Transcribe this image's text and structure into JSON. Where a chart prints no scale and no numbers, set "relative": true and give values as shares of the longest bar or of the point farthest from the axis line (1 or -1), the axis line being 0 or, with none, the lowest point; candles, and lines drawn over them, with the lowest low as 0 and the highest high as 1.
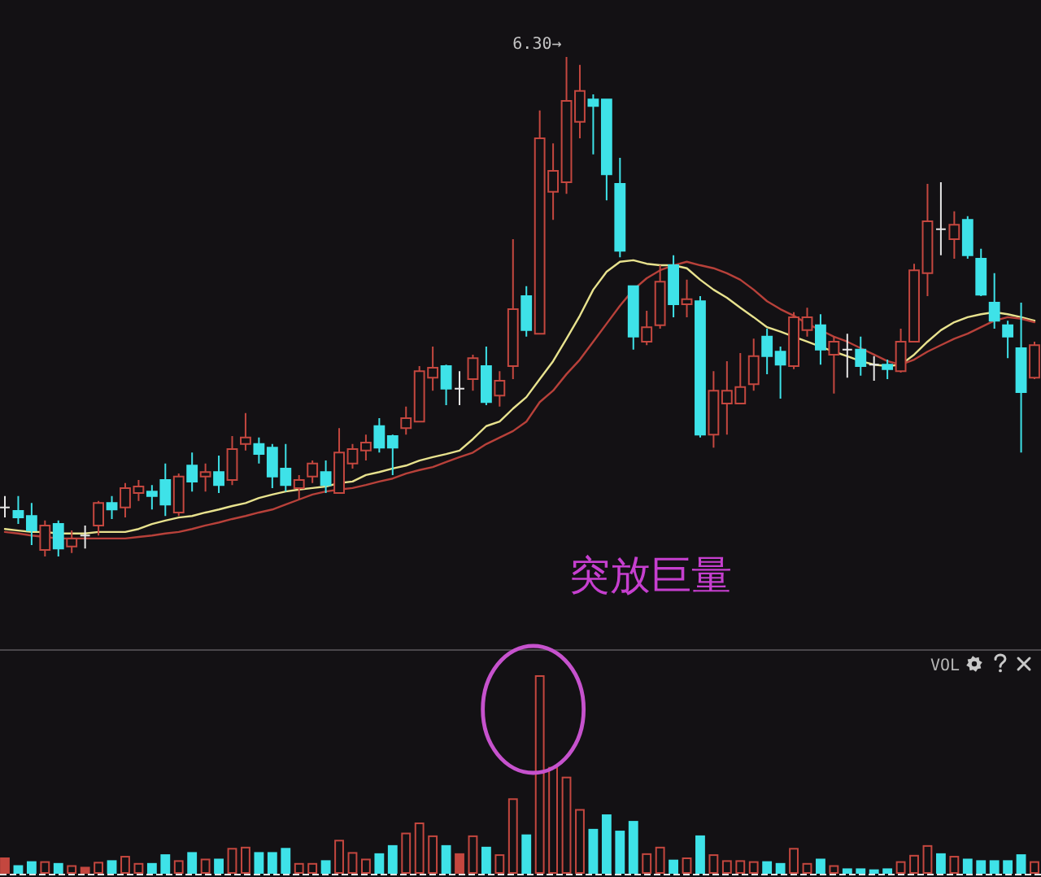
{
  "chart_data": [
    {
      "type": "candlestick",
      "relative": true,
      "categories": [
        null,
        null,
        null,
        null,
        null,
        null,
        null,
        null,
        null,
        null,
        null,
        null,
        null,
        null,
        null,
        null,
        null,
        null,
        null,
        null,
        null,
        null,
        null,
        null,
        null,
        null,
        null,
        null,
        null,
        null,
        null,
        null,
        null,
        null,
        null,
        null,
        null,
        null,
        null,
        null,
        null,
        null,
        null,
        null,
        null,
        null,
        null,
        null,
        null,
        null,
        null,
        null,
        null,
        null,
        null,
        null,
        null,
        null,
        null,
        null,
        null,
        null,
        null,
        null,
        null,
        null,
        null,
        null,
        null,
        null,
        null,
        null,
        null,
        null,
        null,
        null,
        null,
        null
      ],
      "ohlc": [
        [
          0.098,
          0.121,
          0.078,
          0.098
        ],
        [
          0.091,
          0.121,
          0.065,
          0.078
        ],
        [
          0.081,
          0.107,
          0.023,
          0.052
        ],
        [
          0.013,
          0.072,
          0,
          0.062
        ],
        [
          0.065,
          0.072,
          0,
          0.016
        ],
        [
          0.02,
          0.052,
          0.007,
          0.036
        ],
        [
          0.042,
          0.062,
          0.016,
          0.042
        ],
        [
          0.062,
          0.111,
          0.042,
          0.107
        ],
        [
          0.107,
          0.121,
          0.075,
          0.094
        ],
        [
          0.098,
          0.147,
          0.078,
          0.137
        ],
        [
          0.127,
          0.153,
          0.111,
          0.14
        ],
        [
          0.13,
          0.143,
          0.094,
          0.121
        ],
        [
          0.153,
          0.186,
          0.081,
          0.104
        ],
        [
          0.088,
          0.166,
          0.081,
          0.16
        ],
        [
          0.182,
          0.208,
          0.13,
          0.15
        ],
        [
          0.16,
          0.186,
          0.13,
          0.169
        ],
        [
          0.169,
          0.202,
          0.127,
          0.143
        ],
        [
          0.153,
          0.241,
          0.143,
          0.215
        ],
        [
          0.225,
          0.287,
          0.212,
          0.238
        ],
        [
          0.225,
          0.238,
          0.186,
          0.205
        ],
        [
          0.218,
          0.225,
          0.137,
          0.16
        ],
        [
          0.176,
          0.225,
          0.13,
          0.143
        ],
        [
          0.137,
          0.163,
          0.114,
          0.153
        ],
        [
          0.16,
          0.192,
          0.147,
          0.186
        ],
        [
          0.169,
          0.192,
          0.127,
          0.143
        ],
        [
          0.127,
          0.257,
          0.127,
          0.208
        ],
        [
          0.186,
          0.225,
          0.176,
          0.215
        ],
        [
          0.212,
          0.244,
          0.192,
          0.228
        ],
        [
          0.261,
          0.277,
          0.208,
          0.218
        ],
        [
          0.241,
          0.244,
          0.163,
          0.218
        ],
        [
          0.257,
          0.3,
          0.244,
          0.277
        ],
        [
          0.27,
          0.381,
          0.27,
          0.371
        ],
        [
          0.358,
          0.42,
          0.332,
          0.378
        ],
        [
          0.381,
          0.384,
          0.303,
          0.336
        ],
        [
          0.336,
          0.371,
          0.303,
          0.336
        ],
        [
          0.355,
          0.404,
          0.332,
          0.397
        ],
        [
          0.381,
          0.42,
          0.303,
          0.309
        ],
        [
          0.322,
          0.371,
          0.3,
          0.352
        ],
        [
          0.381,
          0.635,
          0.355,
          0.495
        ],
        [
          0.521,
          0.541,
          0.44,
          0.453
        ],
        [
          0.446,
          0.893,
          0.446,
          0.837
        ],
        [
          0.73,
          0.827,
          0.674,
          0.772
        ],
        [
          0.749,
          1,
          0.726,
          0.912
        ],
        [
          0.87,
          0.984,
          0.837,
          0.932
        ],
        [
          0.915,
          0.925,
          0.805,
          0.902
        ],
        [
          0.915,
          0.915,
          0.713,
          0.765
        ],
        [
          0.746,
          0.798,
          0.599,
          0.612
        ],
        [
          0.541,
          0.541,
          0.414,
          0.44
        ],
        [
          0.43,
          0.492,
          0.423,
          0.459
        ],
        [
          0.463,
          0.583,
          0.456,
          0.55
        ],
        [
          0.583,
          0.603,
          0.479,
          0.505
        ],
        [
          0.505,
          0.554,
          0.479,
          0.515
        ],
        [
          0.511,
          0.521,
          0.238,
          0.244
        ],
        [
          0.244,
          0.371,
          0.218,
          0.332
        ],
        [
          0.306,
          0.391,
          0.244,
          0.332
        ],
        [
          0.306,
          0.407,
          0.306,
          0.339
        ],
        [
          0.345,
          0.436,
          0.332,
          0.401
        ],
        [
          0.44,
          0.456,
          0.365,
          0.401
        ],
        [
          0.41,
          0.42,
          0.316,
          0.384
        ],
        [
          0.381,
          0.489,
          0.375,
          0.479
        ],
        [
          0.453,
          0.498,
          0.44,
          0.479
        ],
        [
          0.463,
          0.485,
          0.384,
          0.414
        ],
        [
          0.404,
          0.44,
          0.326,
          0.43
        ],
        [
          0.414,
          0.446,
          0.358,
          0.414
        ],
        [
          0.414,
          0.44,
          0.362,
          0.381
        ],
        [
          0.384,
          0.401,
          0.352,
          0.384
        ],
        [
          0.384,
          0.394,
          0.355,
          0.375
        ],
        [
          0.371,
          0.456,
          0.368,
          0.43
        ],
        [
          0.43,
          0.586,
          0.43,
          0.573
        ],
        [
          0.567,
          0.746,
          0.521,
          0.671
        ],
        [
          0.655,
          0.749,
          0.603,
          0.655
        ],
        [
          0.635,
          0.691,
          0.596,
          0.664
        ],
        [
          0.674,
          0.681,
          0.596,
          0.603
        ],
        [
          0.596,
          0.616,
          0.521,
          0.524
        ],
        [
          0.508,
          0.567,
          0.456,
          0.472
        ],
        [
          0.463,
          0.472,
          0.397,
          0.44
        ],
        [
          0.417,
          0.508,
          0.208,
          0.329
        ],
        [
          0.358,
          0.43,
          0.355,
          0.423
        ]
      ],
      "colors": [
        "#e6e6e6",
        "#3ee2e8",
        "#3ee2e8",
        "#c4473f",
        "#3ee2e8",
        "#c4473f",
        "#e6e6e6",
        "#c4473f",
        "#3ee2e8",
        "#c4473f",
        "#c4473f",
        "#3ee2e8",
        "#3ee2e8",
        "#c4473f",
        "#3ee2e8",
        "#c4473f",
        "#3ee2e8",
        "#c4473f",
        "#c4473f",
        "#3ee2e8",
        "#3ee2e8",
        "#3ee2e8",
        "#c4473f",
        "#c4473f",
        "#3ee2e8",
        "#c4473f",
        "#c4473f",
        "#c4473f",
        "#3ee2e8",
        "#3ee2e8",
        "#c4473f",
        "#c4473f",
        "#c4473f",
        "#3ee2e8",
        "#e6e6e6",
        "#c4473f",
        "#3ee2e8",
        "#c4473f",
        "#c4473f",
        "#3ee2e8",
        "#c4473f",
        "#c4473f",
        "#c4473f",
        "#c4473f",
        "#3ee2e8",
        "#3ee2e8",
        "#3ee2e8",
        "#3ee2e8",
        "#c4473f",
        "#c4473f",
        "#3ee2e8",
        "#c4473f",
        "#3ee2e8",
        "#c4473f",
        "#c4473f",
        "#c4473f",
        "#c4473f",
        "#3ee2e8",
        "#3ee2e8",
        "#c4473f",
        "#c4473f",
        "#3ee2e8",
        "#c4473f",
        "#e6e6e6",
        "#3ee2e8",
        "#e6e6e6",
        "#3ee2e8",
        "#c4473f",
        "#c4473f",
        "#c4473f",
        "#e6e6e6",
        "#c4473f",
        "#3ee2e8",
        "#3ee2e8",
        "#3ee2e8",
        "#3ee2e8",
        "#3ee2e8",
        "#c4473f"
      ],
      "series": [
        {
          "type": "line",
          "color": "#e8e28e",
          "values": [
            0.055,
            0.052,
            0.049,
            0.049,
            0.046,
            0.046,
            0.046,
            0.049,
            0.049,
            0.049,
            0.055,
            0.065,
            0.072,
            0.078,
            0.081,
            0.088,
            0.094,
            0.101,
            0.107,
            0.117,
            0.124,
            0.13,
            0.134,
            0.137,
            0.14,
            0.147,
            0.15,
            0.163,
            0.169,
            0.176,
            0.182,
            0.192,
            0.199,
            0.205,
            0.212,
            0.235,
            0.261,
            0.27,
            0.296,
            0.319,
            0.355,
            0.391,
            0.436,
            0.482,
            0.534,
            0.57,
            0.59,
            0.593,
            0.586,
            0.583,
            0.583,
            0.577,
            0.554,
            0.534,
            0.518,
            0.498,
            0.479,
            0.459,
            0.45,
            0.44,
            0.43,
            0.42,
            0.41,
            0.401,
            0.391,
            0.384,
            0.381,
            0.384,
            0.404,
            0.43,
            0.453,
            0.469,
            0.479,
            0.485,
            0.489,
            0.485,
            0.479,
            0.472
          ]
        },
        {
          "type": "line",
          "color": "#b8413a",
          "values": [
            0.049,
            0.046,
            0.042,
            0.039,
            0.036,
            0.036,
            0.036,
            0.036,
            0.036,
            0.036,
            0.039,
            0.042,
            0.046,
            0.049,
            0.055,
            0.062,
            0.068,
            0.075,
            0.081,
            0.088,
            0.094,
            0.104,
            0.114,
            0.124,
            0.13,
            0.134,
            0.137,
            0.143,
            0.15,
            0.156,
            0.166,
            0.173,
            0.179,
            0.189,
            0.199,
            0.208,
            0.225,
            0.238,
            0.251,
            0.27,
            0.309,
            0.332,
            0.365,
            0.394,
            0.43,
            0.466,
            0.502,
            0.534,
            0.557,
            0.573,
            0.583,
            0.59,
            0.583,
            0.577,
            0.567,
            0.554,
            0.534,
            0.511,
            0.495,
            0.482,
            0.466,
            0.453,
            0.44,
            0.43,
            0.417,
            0.404,
            0.391,
            0.384,
            0.394,
            0.41,
            0.423,
            0.436,
            0.446,
            0.459,
            0.472,
            0.479,
            0.476,
            0.469
          ]
        }
      ],
      "annotations": [
        "6.30→",
        "突放巨量"
      ]
    },
    {
      "type": "bar",
      "title": "VOL",
      "relative": true,
      "categories": [
        null,
        null,
        null,
        null,
        null,
        null,
        null,
        null,
        null,
        null,
        null,
        null,
        null,
        null,
        null,
        null,
        null,
        null,
        null,
        null,
        null,
        null,
        null,
        null,
        null,
        null,
        null,
        null,
        null,
        null,
        null,
        null,
        null,
        null,
        null,
        null,
        null,
        null,
        null,
        null,
        null,
        null,
        null,
        null,
        null,
        null,
        null,
        null,
        null,
        null,
        null,
        null,
        null,
        null,
        null,
        null,
        null,
        null,
        null,
        null,
        null,
        null,
        null,
        null,
        null,
        null,
        null,
        null,
        null,
        null,
        null,
        null,
        null,
        null,
        null,
        null,
        null,
        null
      ],
      "values": [
        0.082,
        0.043,
        0.063,
        0.063,
        0.054,
        0.043,
        0.035,
        0.06,
        0.068,
        0.09,
        0.054,
        0.054,
        0.098,
        0.068,
        0.109,
        0.076,
        0.076,
        0.13,
        0.136,
        0.109,
        0.109,
        0.13,
        0.054,
        0.054,
        0.068,
        0.171,
        0.109,
        0.076,
        0.103,
        0.144,
        0.207,
        0.258,
        0.193,
        0.144,
        0.103,
        0.193,
        0.136,
        0.098,
        0.38,
        0.198,
        1,
        0.538,
        0.489,
        0.326,
        0.226,
        0.299,
        0.217,
        0.266,
        0.103,
        0.136,
        0.071,
        0.082,
        0.193,
        0.098,
        0.068,
        0.068,
        0.063,
        0.063,
        0.054,
        0.13,
        0.054,
        0.076,
        0.043,
        0.027,
        0.027,
        0.022,
        0.027,
        0.063,
        0.095,
        0.144,
        0.103,
        0.09,
        0.076,
        0.068,
        0.068,
        0.068,
        0.098,
        0.063
      ],
      "colors": [
        "#c4473f",
        "#3ee2e8",
        "#3ee2e8",
        "#c4473f",
        "#3ee2e8",
        "#c4473f",
        "#c4473f",
        "#c4473f",
        "#3ee2e8",
        "#c4473f",
        "#c4473f",
        "#3ee2e8",
        "#3ee2e8",
        "#c4473f",
        "#3ee2e8",
        "#c4473f",
        "#3ee2e8",
        "#c4473f",
        "#c4473f",
        "#3ee2e8",
        "#3ee2e8",
        "#3ee2e8",
        "#c4473f",
        "#c4473f",
        "#3ee2e8",
        "#c4473f",
        "#c4473f",
        "#c4473f",
        "#3ee2e8",
        "#3ee2e8",
        "#c4473f",
        "#c4473f",
        "#c4473f",
        "#3ee2e8",
        "#c4473f",
        "#c4473f",
        "#3ee2e8",
        "#c4473f",
        "#c4473f",
        "#3ee2e8",
        "#c4473f",
        "#c4473f",
        "#c4473f",
        "#c4473f",
        "#3ee2e8",
        "#3ee2e8",
        "#3ee2e8",
        "#3ee2e8",
        "#c4473f",
        "#c4473f",
        "#3ee2e8",
        "#c4473f",
        "#3ee2e8",
        "#c4473f",
        "#c4473f",
        "#c4473f",
        "#c4473f",
        "#3ee2e8",
        "#3ee2e8",
        "#c4473f",
        "#c4473f",
        "#3ee2e8",
        "#c4473f",
        "#3ee2e8",
        "#3ee2e8",
        "#3ee2e8",
        "#3ee2e8",
        "#c4473f",
        "#c4473f",
        "#c4473f",
        "#3ee2e8",
        "#c4473f",
        "#3ee2e8",
        "#3ee2e8",
        "#3ee2e8",
        "#3ee2e8",
        "#3ee2e8",
        "#c4473f"
      ]
    }
  ]
}
